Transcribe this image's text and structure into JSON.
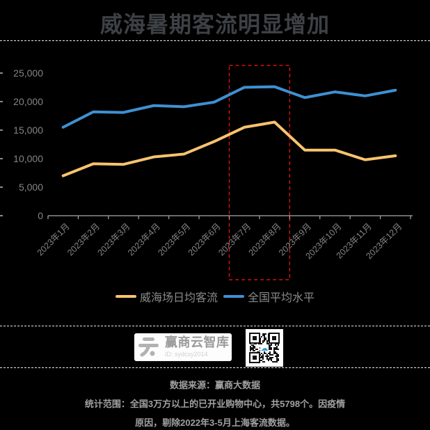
{
  "title": "威海暑期客流明显增加",
  "colors": {
    "background": "#000000",
    "title": "#3d4045",
    "separator": "#e8e8e8",
    "axis": "#a8a8a8",
    "edge_tick": "#8a8a8a",
    "tick_label": "#858585",
    "legend_text": "#8a8a8a",
    "footer_text": "#a0a0a0",
    "highlight_red": "#cd1414",
    "qr_accent": "#2d9fd8"
  },
  "chart_data": {
    "type": "line",
    "title": "威海暑期客流明显增加",
    "xlabel": "",
    "ylabel": "",
    "ylim": [
      0,
      25000
    ],
    "grid": false,
    "legend_position": "bottom",
    "categories": [
      "2023年1月",
      "2023年2月",
      "2023年3月",
      "2023年4月",
      "2023年5月",
      "2023年6月",
      "2023年7月",
      "2023年8月",
      "2023年9月",
      "2023年10月",
      "2023年11月",
      "2023年12月"
    ],
    "yticks": [
      {
        "value": 0,
        "label": "0"
      },
      {
        "value": 5000,
        "label": "5,000"
      },
      {
        "value": 10000,
        "label": "10,000"
      },
      {
        "value": 15000,
        "label": "15,000"
      },
      {
        "value": 20000,
        "label": "20,000"
      },
      {
        "value": 25000,
        "label": "25,000"
      }
    ],
    "series": [
      {
        "name": "威海场日均客流",
        "color": "#f9c36e",
        "values": [
          7000,
          9100,
          9000,
          10300,
          10800,
          13000,
          15500,
          16400,
          11500,
          11500,
          9800,
          10500
        ]
      },
      {
        "name": "全国平均水平",
        "color": "#3f90d2",
        "values": [
          15500,
          18200,
          18100,
          19300,
          19100,
          19900,
          22500,
          22600,
          20700,
          21700,
          21000,
          22000
        ]
      }
    ],
    "highlight": {
      "from": "2023年7月",
      "to": "2023年8月",
      "color": "#cd1414",
      "style": "dashed-box"
    }
  },
  "branding": {
    "logo_text": "赢商云智库",
    "logo_id": "ID: sydcxy2014",
    "qr_icon": "cloud"
  },
  "footer": {
    "line1": "数据来源：赢商大数据",
    "line2": "统计范围：全国3万方以上的已开业购物中心，共5798个。因疫情",
    "line3": "原因，剔除2022年3-5月上海客流数据。"
  }
}
